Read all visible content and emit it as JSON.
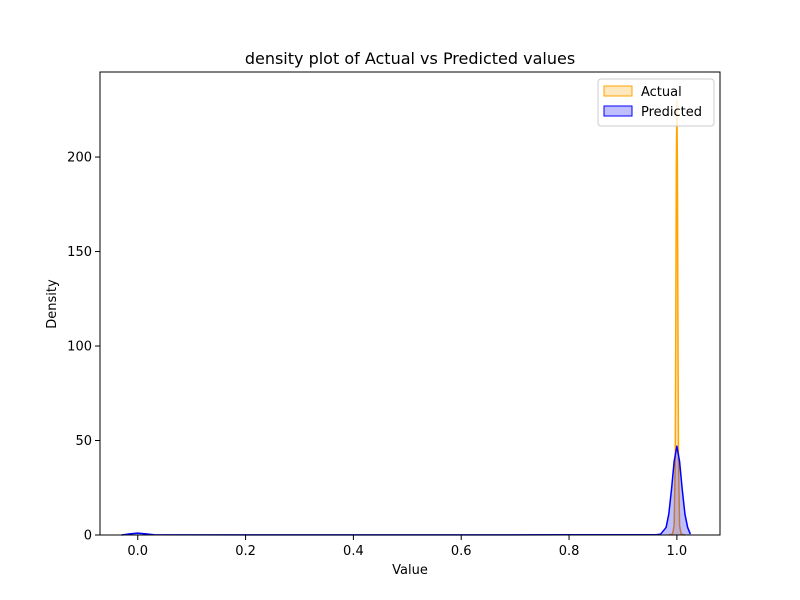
{
  "chart_data": {
    "type": "area",
    "title": "density plot of Actual vs Predicted values",
    "xlabel": "Value",
    "ylabel": "Density",
    "xlim": [
      -0.07,
      1.08
    ],
    "ylim": [
      0,
      245
    ],
    "xticks": [
      0.0,
      0.2,
      0.4,
      0.6,
      0.8,
      1.0
    ],
    "xtick_labels": [
      "0.0",
      "0.2",
      "0.4",
      "0.6",
      "0.8",
      "1.0"
    ],
    "yticks": [
      0,
      50,
      100,
      150,
      200
    ],
    "ytick_labels": [
      "0",
      "50",
      "100",
      "150",
      "200"
    ],
    "grid": false,
    "legend_position": "top-right",
    "series": [
      {
        "name": "Actual",
        "color": "#ffa500",
        "fill": "#ffa500",
        "x": [
          0.985,
          0.992,
          0.995,
          0.997,
          0.998,
          0.999,
          1.0,
          1.001,
          1.002,
          1.003,
          1.005,
          1.008,
          1.015
        ],
        "y": [
          0,
          0.5,
          5,
          40,
          110,
          195,
          230,
          195,
          110,
          40,
          5,
          0.5,
          0
        ]
      },
      {
        "name": "Predicted",
        "color": "#0000ff",
        "fill": "#0000ff",
        "x": [
          -0.03,
          -0.015,
          0.0,
          0.015,
          0.03,
          0.2,
          0.5,
          0.8,
          0.96,
          0.97,
          0.98,
          0.985,
          0.99,
          0.995,
          1.0,
          1.005,
          1.01,
          1.015,
          1.02,
          1.025
        ],
        "y": [
          0,
          0.6,
          1.0,
          0.6,
          0.15,
          0.05,
          0.05,
          0.1,
          0.1,
          0.5,
          4,
          11,
          24,
          39,
          47,
          39,
          24,
          11,
          4,
          0.5
        ]
      }
    ]
  }
}
